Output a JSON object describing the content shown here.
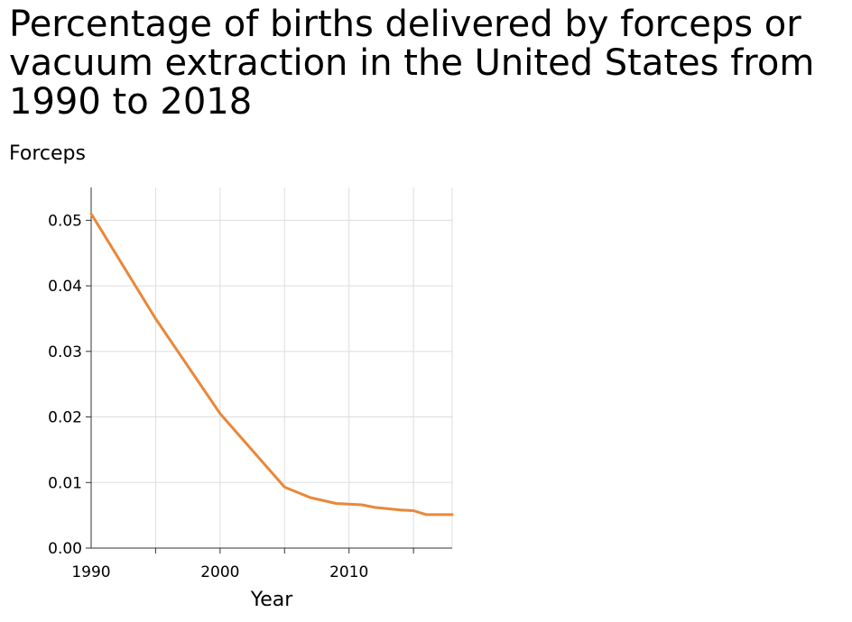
{
  "chart_data": {
    "type": "line",
    "title": "Percentage of births delivered by forceps or vacuum extraction in the United States from 1990 to 2018",
    "ylabel": "Forceps",
    "xlabel": "Year",
    "xlim": [
      1990,
      2018
    ],
    "ylim": [
      0,
      0.055
    ],
    "x_ticks": [
      1990,
      2000,
      2010
    ],
    "x_grid": [
      1995,
      2000,
      2005,
      2010,
      2015
    ],
    "y_ticks": [
      "0.00",
      "0.01",
      "0.02",
      "0.03",
      "0.04",
      "0.05"
    ],
    "grid": true,
    "series": [
      {
        "name": "Forceps",
        "color": "#e8883a",
        "x": [
          1990,
          1995,
          2000,
          2005,
          2007,
          2009,
          2011,
          2012,
          2014,
          2015,
          2016,
          2018
        ],
        "y": [
          0.051,
          0.035,
          0.0205,
          0.0093,
          0.0077,
          0.0068,
          0.0066,
          0.0062,
          0.0058,
          0.0057,
          0.0051,
          0.0051
        ]
      }
    ]
  }
}
